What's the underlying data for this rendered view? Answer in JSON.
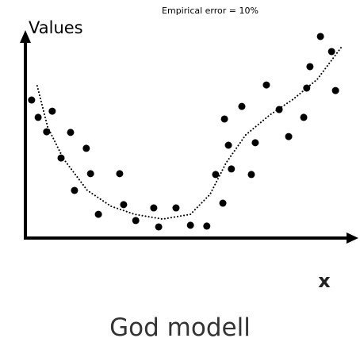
{
  "chart_data": {
    "type": "scatter",
    "title": "God modell",
    "annotation": "Empirical error = 10%",
    "y_label": "Values",
    "x_label": "x",
    "xlim": [
      0,
      100
    ],
    "ylim": [
      0,
      100
    ],
    "series": [
      {
        "type": "scatter",
        "color": "#000000",
        "x": [
          1.9,
          3.9,
          6.5,
          8.2,
          13.8,
          10.9,
          18.6,
          15.0,
          19.9,
          22.3,
          28.8,
          30.0,
          33.7,
          39.2,
          40.7,
          46.0,
          50.4,
          55.4,
          58.1,
          60.3,
          60.8,
          62.0,
          62.9,
          66.1,
          69.0,
          70.2,
          73.6,
          77.5,
          80.4,
          85.0,
          85.9,
          90.1,
          86.9,
          93.5,
          94.7
        ],
        "values": [
          66.9,
          58.5,
          51.5,
          61.5,
          51.2,
          38.8,
          43.5,
          23.1,
          31.2,
          11.5,
          31.2,
          16.2,
          8.5,
          14.6,
          5.4,
          14.6,
          6.2,
          5.8,
          30.8,
          16.9,
          57.7,
          45.0,
          33.5,
          63.8,
          30.8,
          46.2,
          74.2,
          62.3,
          49.2,
          58.5,
          72.7,
          97.7,
          83.1,
          90.4,
          71.5
        ]
      },
      {
        "type": "line",
        "color": "#000000",
        "x": [
          3.6,
          6.8,
          11.6,
          18.9,
          26.2,
          33.4,
          41.9,
          50.4,
          56.4,
          61.3,
          67.3,
          74.6,
          81.8,
          89.1,
          96.4
        ],
        "values": [
          73.8,
          53.8,
          38.5,
          23.1,
          15.4,
          11.5,
          9.2,
          11.5,
          21.2,
          36.5,
          50.0,
          59.6,
          67.3,
          76.9,
          92.3
        ]
      }
    ]
  }
}
